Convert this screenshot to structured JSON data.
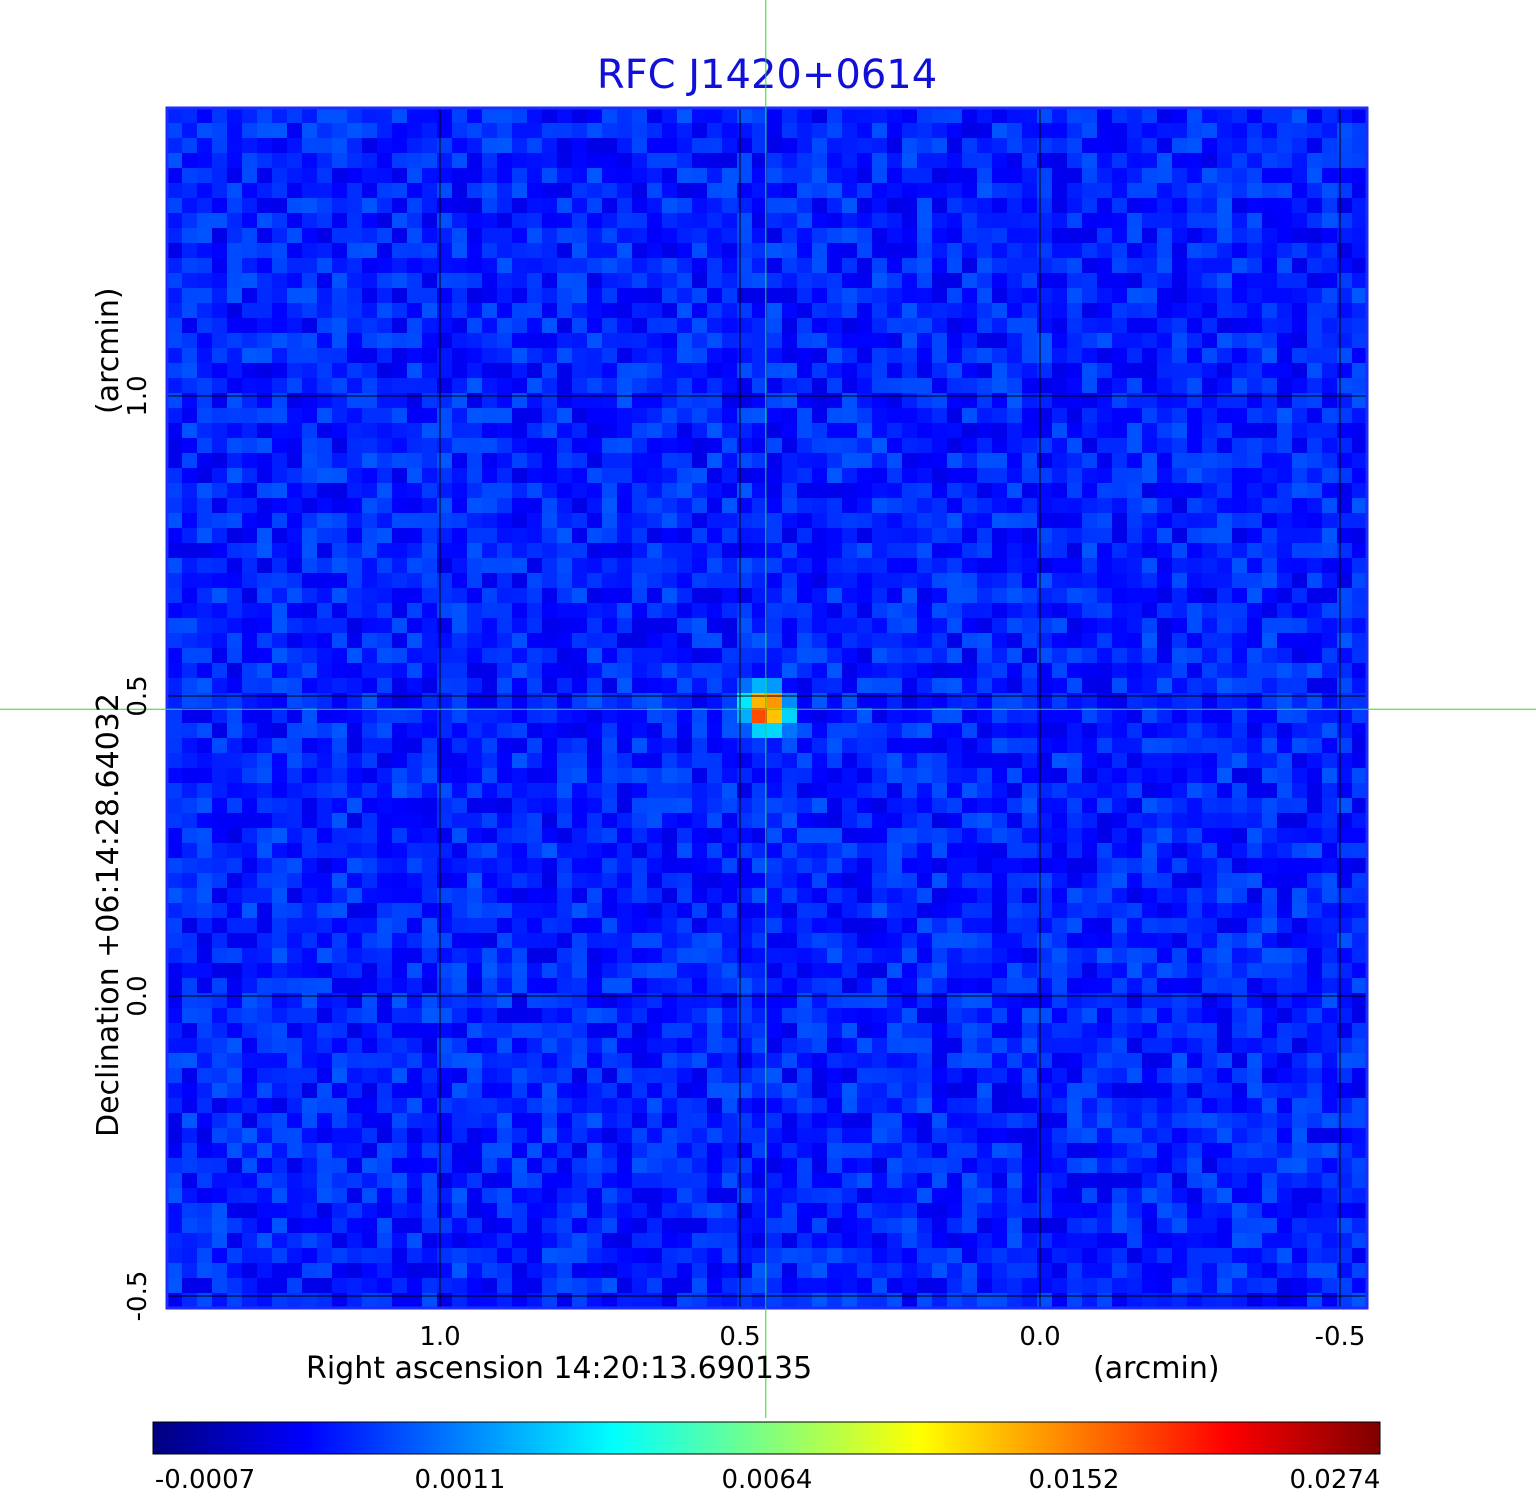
{
  "chart_data": {
    "type": "heatmap",
    "title": "RFC J1420+0614",
    "xlabel": "Right ascension  14:20:13.690135",
    "x_unit": "(arcmin)",
    "ylabel": "Declination  +06:14:28.64032",
    "y_unit": "(arcmin)",
    "x_axis": {
      "range": [
        1.455,
        -0.545
      ],
      "ticks": [
        1.0,
        0.5,
        0.0,
        -0.5
      ],
      "tick_labels": [
        "1.0",
        "0.5",
        "0.0",
        "-0.5"
      ]
    },
    "y_axis": {
      "range": [
        -0.52,
        1.48
      ],
      "ticks": [
        -0.5,
        0.0,
        0.5,
        1.0
      ],
      "tick_labels": [
        "-0.5",
        "0.0",
        "0.5",
        "1.0"
      ]
    },
    "grid": true,
    "crosshair": {
      "x": 0.457,
      "y": 0.478
    },
    "peak": {
      "x": 0.457,
      "y": 0.478,
      "value": 0.0274
    },
    "background_level": -0.0002,
    "colorbar": {
      "colormap": "jet",
      "tick_labels": [
        "-0.0007",
        "0.0011",
        "0.0064",
        "0.0152",
        "0.0274"
      ]
    },
    "colors": {
      "title": "#1010d8",
      "grid": "#000000",
      "crosshair": "#22dd22",
      "frame": "#1b2cff"
    }
  }
}
